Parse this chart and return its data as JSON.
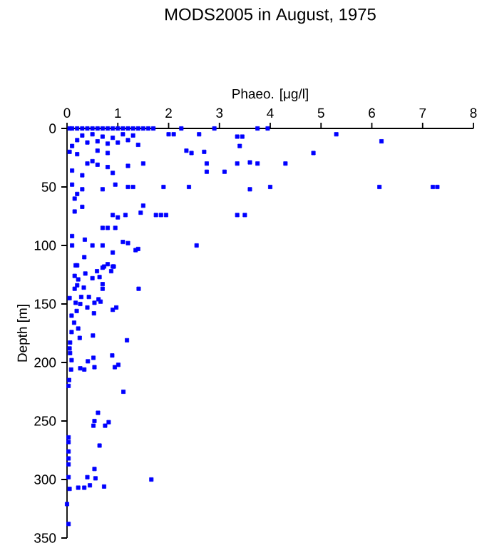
{
  "chart_data": {
    "type": "scatter",
    "title": "MODS2005 in August, 1975",
    "xlabel": "Phaeo. [μg/l]",
    "ylabel": "Depth [m]",
    "xlim": [
      0,
      8
    ],
    "ylim": [
      350,
      0
    ],
    "xticks": [
      0,
      1,
      2,
      3,
      4,
      5,
      6,
      7,
      8
    ],
    "yticks": [
      0,
      50,
      100,
      150,
      200,
      250,
      300,
      350
    ],
    "grid": false,
    "marker": "square",
    "series": [
      {
        "color": "#0000ff",
        "x": [
          0.05,
          0.1,
          0.2,
          0.3,
          0.4,
          0.5,
          0.6,
          0.7,
          0.8,
          0.9,
          1.0,
          1.1,
          1.2,
          1.3,
          1.4,
          1.5,
          1.6,
          1.7,
          2.25,
          2.9,
          3.75,
          3.95,
          2.0,
          2.1,
          2.6,
          3.35,
          3.45,
          5.3,
          6.19,
          0.2,
          0.4,
          0.6,
          0.8,
          1.0,
          1.2,
          1.4,
          0.1,
          0.3,
          0.5,
          0.7,
          0.9,
          1.1,
          1.3,
          3.4,
          4.85,
          2.35,
          2.45,
          2.7,
          0.05,
          0.2,
          0.6,
          0.8,
          2.75,
          3.35,
          3.6,
          3.75,
          4.3,
          1.5,
          1.2,
          0.4,
          0.6,
          0.8,
          2.75,
          3.1,
          0.9,
          0.5,
          0.1,
          0.3,
          7.29,
          7.2,
          6.15,
          4.0,
          3.6,
          2.4,
          1.9,
          1.2,
          1.3,
          0.7,
          0.95,
          0.1,
          0.3,
          0.2,
          1.5,
          0.15,
          3.35,
          3.5,
          1.75,
          1.85,
          1.95,
          1.45,
          1.15,
          0.9,
          1.0,
          0.3,
          0.15,
          0.7,
          0.8,
          0.95,
          0.1,
          2.55,
          1.1,
          1.2,
          1.35,
          1.4,
          0.7,
          0.5,
          0.35,
          0.1,
          0.9,
          0.7,
          0.9,
          0.2,
          0.17,
          0.34,
          0.73,
          0.8,
          0.92,
          0.87,
          0.59,
          0.36,
          0.15,
          0.5,
          0.64,
          0.22,
          0.7,
          0.2,
          0.33,
          0.15,
          0.7,
          1.41,
          0.28,
          0.43,
          0.05,
          0.62,
          0.17,
          0.26,
          0.54,
          0.66,
          0.97,
          0.9,
          0.4,
          0.19,
          0.53,
          0.09,
          0.14,
          0.22,
          0.09,
          0.25,
          0.51,
          1.18,
          0.06,
          0.05,
          0.06,
          0.52,
          0.41,
          0.89,
          0.09,
          0.94,
          1.01,
          0.54,
          0.26,
          0.34,
          0.08,
          0.04,
          0.03,
          1.11,
          0.61,
          0.54,
          0.82,
          0.52,
          0.75,
          0.03,
          0.03,
          0.03,
          0.03,
          0.03,
          0.64,
          0.54,
          0.4,
          0.56,
          0.03,
          1.66,
          0.22,
          0.34,
          0.45,
          0.73,
          0.05,
          0.0,
          0.03
        ],
        "values": [
          0,
          0,
          0,
          0,
          0,
          0,
          0,
          0,
          0,
          0,
          0,
          0,
          0,
          0,
          0,
          0,
          0,
          0,
          0,
          0,
          0,
          0,
          5,
          5,
          5,
          7,
          7,
          5,
          11,
          10,
          12,
          11,
          13,
          12,
          10,
          14,
          15,
          6,
          5,
          7,
          8,
          5,
          6,
          15,
          21,
          19,
          21,
          20,
          20,
          22,
          19,
          21,
          30,
          30,
          29,
          30,
          30,
          30,
          32,
          30,
          31,
          33,
          37,
          37,
          38,
          28,
          36,
          40,
          50,
          50,
          50,
          50,
          52,
          50,
          50,
          50,
          50,
          52,
          48,
          48,
          52,
          56,
          66,
          60,
          74,
          74,
          74,
          74,
          74,
          72,
          74,
          74,
          76,
          67,
          71,
          85,
          85,
          85,
          92,
          100,
          97,
          98,
          104,
          103,
          100,
          100,
          95,
          100,
          106,
          119,
          118,
          117,
          117,
          110,
          118,
          116,
          118,
          122,
          122,
          124,
          126,
          128,
          127,
          129,
          133,
          134,
          136,
          137,
          137,
          137,
          144,
          144,
          145,
          146,
          149,
          150,
          149,
          148,
          153,
          155,
          153,
          156,
          158,
          160,
          166,
          171,
          174,
          179,
          177,
          181,
          183,
          188,
          192,
          196,
          199,
          194,
          198,
          204,
          202,
          204,
          205,
          206,
          206,
          215,
          220,
          225,
          243,
          250,
          251,
          254,
          254,
          264,
          268,
          276,
          282,
          287,
          271,
          291,
          298,
          299,
          298,
          300,
          307,
          307,
          305,
          306,
          308,
          321,
          338
        ]
      }
    ]
  }
}
